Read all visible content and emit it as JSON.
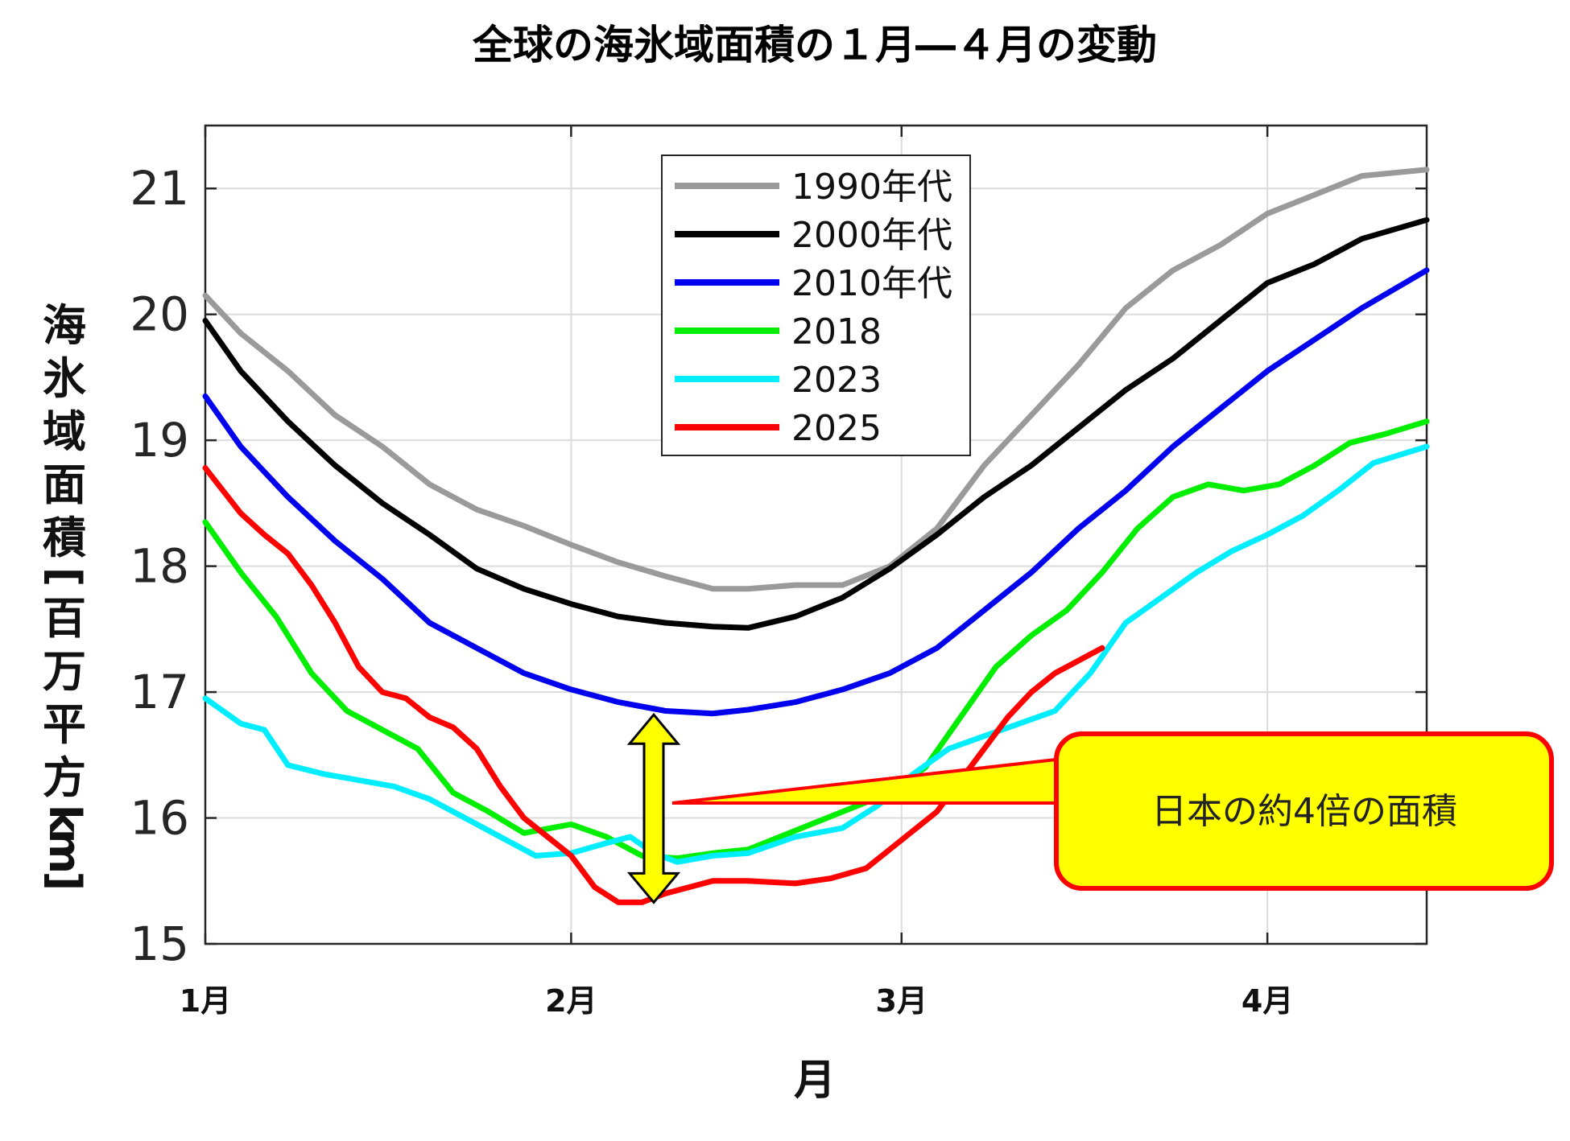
{
  "chart_data": {
    "type": "line",
    "title": "全球の海氷域面積の１月―４月の変動",
    "xlabel": "月",
    "ylabel": "海氷域面積[百万平方km]",
    "xlim": [
      0,
      103.5
    ],
    "ylim": [
      15,
      21.5
    ],
    "grid": true,
    "legend_position": "top-center",
    "x_ticks": [
      {
        "value": 0,
        "label": "1月"
      },
      {
        "value": 31,
        "label": "2月"
      },
      {
        "value": 59,
        "label": "3月"
      },
      {
        "value": 90,
        "label": "4月"
      }
    ],
    "y_ticks": [
      15,
      16,
      17,
      18,
      19,
      20,
      21
    ],
    "series": [
      {
        "name": "1990年代",
        "color": "#9a9a9a",
        "points": [
          [
            0,
            20.15
          ],
          [
            3,
            19.85
          ],
          [
            7,
            19.55
          ],
          [
            11,
            19.2
          ],
          [
            15,
            18.95
          ],
          [
            19,
            18.65
          ],
          [
            23,
            18.45
          ],
          [
            27,
            18.32
          ],
          [
            31,
            18.17
          ],
          [
            35,
            18.03
          ],
          [
            39,
            17.92
          ],
          [
            43,
            17.82
          ],
          [
            46,
            17.82
          ],
          [
            50,
            17.85
          ],
          [
            54,
            17.85
          ],
          [
            58,
            18.0
          ],
          [
            62,
            18.3
          ],
          [
            66,
            18.8
          ],
          [
            70,
            19.2
          ],
          [
            74,
            19.6
          ],
          [
            78,
            20.05
          ],
          [
            82,
            20.35
          ],
          [
            86,
            20.55
          ],
          [
            90,
            20.8
          ],
          [
            94,
            20.95
          ],
          [
            98,
            21.1
          ],
          [
            103.5,
            21.15
          ]
        ]
      },
      {
        "name": "2000年代",
        "color": "#000000",
        "points": [
          [
            0,
            19.95
          ],
          [
            3,
            19.55
          ],
          [
            7,
            19.15
          ],
          [
            11,
            18.8
          ],
          [
            15,
            18.5
          ],
          [
            19,
            18.25
          ],
          [
            23,
            17.98
          ],
          [
            27,
            17.82
          ],
          [
            31,
            17.7
          ],
          [
            35,
            17.6
          ],
          [
            39,
            17.55
          ],
          [
            43,
            17.52
          ],
          [
            46,
            17.51
          ],
          [
            50,
            17.6
          ],
          [
            54,
            17.75
          ],
          [
            58,
            17.98
          ],
          [
            62,
            18.25
          ],
          [
            66,
            18.55
          ],
          [
            70,
            18.8
          ],
          [
            74,
            19.1
          ],
          [
            78,
            19.4
          ],
          [
            82,
            19.65
          ],
          [
            86,
            19.95
          ],
          [
            90,
            20.25
          ],
          [
            94,
            20.4
          ],
          [
            98,
            20.6
          ],
          [
            103.5,
            20.75
          ]
        ]
      },
      {
        "name": "2010年代",
        "color": "#0000ee",
        "points": [
          [
            0,
            19.35
          ],
          [
            3,
            18.95
          ],
          [
            7,
            18.55
          ],
          [
            11,
            18.2
          ],
          [
            15,
            17.9
          ],
          [
            19,
            17.55
          ],
          [
            23,
            17.35
          ],
          [
            27,
            17.15
          ],
          [
            31,
            17.02
          ],
          [
            35,
            16.92
          ],
          [
            39,
            16.85
          ],
          [
            43,
            16.83
          ],
          [
            46,
            16.86
          ],
          [
            50,
            16.92
          ],
          [
            54,
            17.02
          ],
          [
            58,
            17.15
          ],
          [
            62,
            17.35
          ],
          [
            66,
            17.65
          ],
          [
            70,
            17.95
          ],
          [
            74,
            18.3
          ],
          [
            78,
            18.6
          ],
          [
            82,
            18.95
          ],
          [
            86,
            19.25
          ],
          [
            90,
            19.55
          ],
          [
            94,
            19.8
          ],
          [
            98,
            20.05
          ],
          [
            103.5,
            20.35
          ]
        ]
      },
      {
        "name": "2018",
        "color": "#00ee00",
        "points": [
          [
            0,
            18.35
          ],
          [
            3,
            17.95
          ],
          [
            6,
            17.6
          ],
          [
            9,
            17.15
          ],
          [
            12,
            16.85
          ],
          [
            15,
            16.7
          ],
          [
            18,
            16.55
          ],
          [
            21,
            16.2
          ],
          [
            24,
            16.05
          ],
          [
            27,
            15.88
          ],
          [
            31,
            15.95
          ],
          [
            34,
            15.85
          ],
          [
            37,
            15.7
          ],
          [
            40,
            15.68
          ],
          [
            43,
            15.72
          ],
          [
            46,
            15.75
          ],
          [
            50,
            15.9
          ],
          [
            54,
            16.05
          ],
          [
            58,
            16.2
          ],
          [
            61,
            16.4
          ],
          [
            64,
            16.8
          ],
          [
            67,
            17.2
          ],
          [
            70,
            17.45
          ],
          [
            73,
            17.65
          ],
          [
            76,
            17.95
          ],
          [
            79,
            18.3
          ],
          [
            82,
            18.55
          ],
          [
            85,
            18.65
          ],
          [
            88,
            18.6
          ],
          [
            91,
            18.65
          ],
          [
            94,
            18.8
          ],
          [
            97,
            18.98
          ],
          [
            100,
            19.05
          ],
          [
            103.5,
            19.15
          ]
        ]
      },
      {
        "name": "2023",
        "color": "#00eeff",
        "points": [
          [
            0,
            16.95
          ],
          [
            3,
            16.75
          ],
          [
            5,
            16.7
          ],
          [
            7,
            16.42
          ],
          [
            10,
            16.35
          ],
          [
            13,
            16.3
          ],
          [
            16,
            16.25
          ],
          [
            19,
            16.15
          ],
          [
            22,
            16.0
          ],
          [
            25,
            15.85
          ],
          [
            28,
            15.7
          ],
          [
            31,
            15.72
          ],
          [
            34,
            15.8
          ],
          [
            36,
            15.85
          ],
          [
            38,
            15.72
          ],
          [
            40,
            15.65
          ],
          [
            43,
            15.7
          ],
          [
            46,
            15.72
          ],
          [
            50,
            15.85
          ],
          [
            54,
            15.92
          ],
          [
            57,
            16.1
          ],
          [
            60,
            16.35
          ],
          [
            63,
            16.55
          ],
          [
            66,
            16.65
          ],
          [
            69,
            16.75
          ],
          [
            72,
            16.85
          ],
          [
            75,
            17.15
          ],
          [
            78,
            17.55
          ],
          [
            81,
            17.75
          ],
          [
            84,
            17.95
          ],
          [
            87,
            18.12
          ],
          [
            90,
            18.25
          ],
          [
            93,
            18.4
          ],
          [
            96,
            18.6
          ],
          [
            99,
            18.82
          ],
          [
            103.5,
            18.95
          ]
        ]
      },
      {
        "name": "2025",
        "color": "#ff0000",
        "points": [
          [
            0,
            18.78
          ],
          [
            3,
            18.42
          ],
          [
            5,
            18.25
          ],
          [
            7,
            18.1
          ],
          [
            9,
            17.85
          ],
          [
            11,
            17.55
          ],
          [
            13,
            17.2
          ],
          [
            15,
            17.0
          ],
          [
            17,
            16.95
          ],
          [
            19,
            16.8
          ],
          [
            21,
            16.72
          ],
          [
            23,
            16.55
          ],
          [
            25,
            16.25
          ],
          [
            27,
            16.0
          ],
          [
            29,
            15.85
          ],
          [
            31,
            15.7
          ],
          [
            33,
            15.45
          ],
          [
            35,
            15.33
          ],
          [
            37,
            15.33
          ],
          [
            39,
            15.4
          ],
          [
            41,
            15.45
          ],
          [
            43,
            15.5
          ],
          [
            46,
            15.5
          ],
          [
            50,
            15.48
          ],
          [
            53,
            15.52
          ],
          [
            56,
            15.6
          ],
          [
            58,
            15.75
          ],
          [
            60,
            15.9
          ],
          [
            62,
            16.05
          ],
          [
            64,
            16.3
          ],
          [
            66,
            16.55
          ],
          [
            68,
            16.8
          ],
          [
            70,
            17.0
          ],
          [
            72,
            17.15
          ],
          [
            74,
            17.25
          ],
          [
            76,
            17.35
          ]
        ]
      }
    ],
    "annotations": [
      {
        "type": "double-arrow",
        "x": 38,
        "from": 16.82,
        "to": 15.33
      },
      {
        "type": "callout",
        "text": "日本の約4倍の面積"
      }
    ]
  }
}
